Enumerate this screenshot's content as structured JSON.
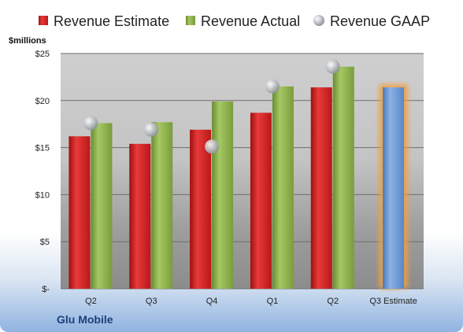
{
  "chart_data": {
    "type": "bar",
    "ylabel": "$millions",
    "company": "Glu Mobile",
    "categories": [
      "Q2",
      "Q3",
      "Q4",
      "Q1",
      "Q2",
      "Q3 Estimate"
    ],
    "yticks": [
      "$-",
      "$5",
      "$10",
      "$15",
      "$20",
      "$25"
    ],
    "ylim": [
      0,
      25
    ],
    "grid": true,
    "legend_position": "top",
    "series": [
      {
        "name": "Revenue Estimate",
        "kind": "bar",
        "color": "#d62020",
        "values": [
          16.2,
          15.4,
          16.9,
          18.7,
          21.4,
          null
        ]
      },
      {
        "name": "Revenue Actual",
        "kind": "bar",
        "color": "#8cb04a",
        "values": [
          17.6,
          17.7,
          19.9,
          21.5,
          23.6,
          null
        ]
      },
      {
        "name": "Revenue GAAP",
        "kind": "marker",
        "color": "#b4b8bf",
        "values": [
          17.6,
          16.9,
          15.1,
          21.5,
          23.6,
          null
        ]
      }
    ],
    "forecast": {
      "category_index": 5,
      "value": 21.4,
      "color": "#6c9bd6",
      "glow": "#f0a040"
    }
  }
}
